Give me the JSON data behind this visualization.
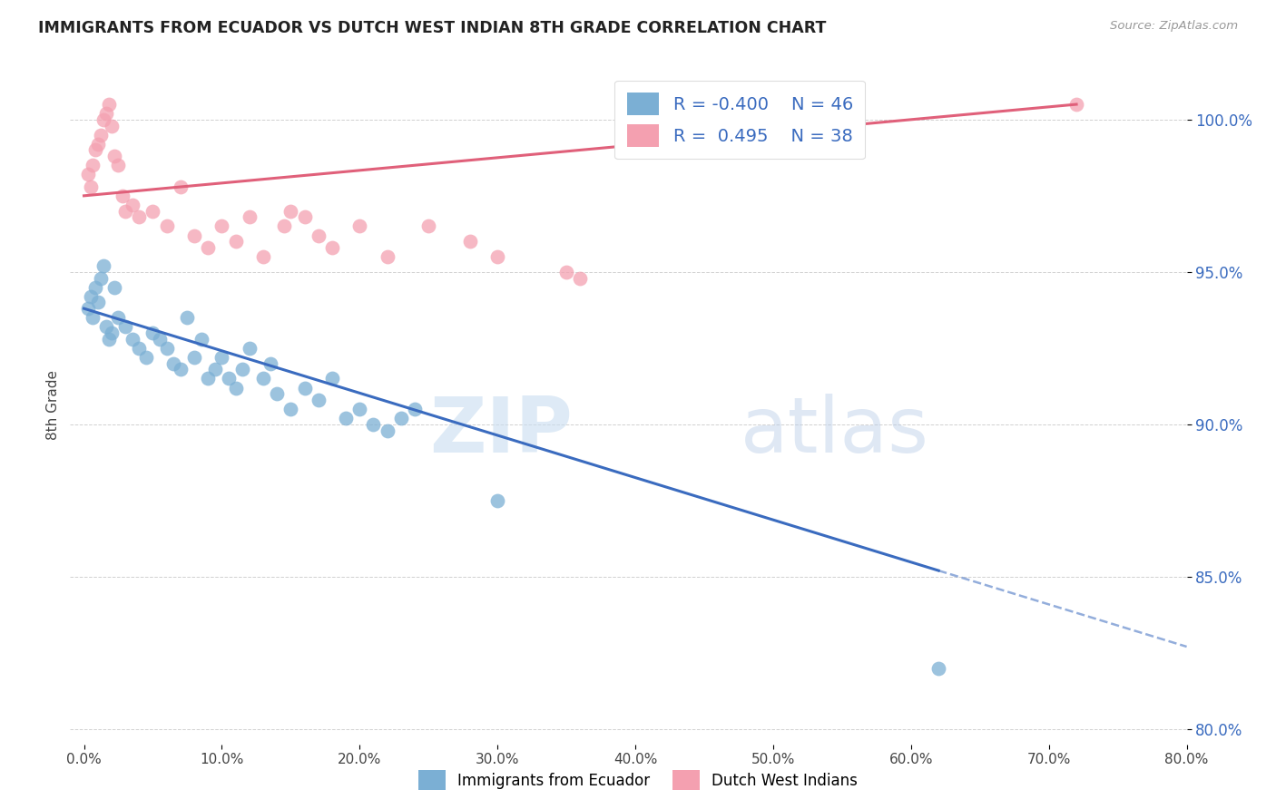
{
  "title": "IMMIGRANTS FROM ECUADOR VS DUTCH WEST INDIAN 8TH GRADE CORRELATION CHART",
  "source": "Source: ZipAtlas.com",
  "ylabel": "8th Grade",
  "yticks": [
    80.0,
    85.0,
    90.0,
    95.0,
    100.0
  ],
  "xticks": [
    0.0,
    10.0,
    20.0,
    30.0,
    40.0,
    50.0,
    60.0,
    70.0,
    80.0
  ],
  "xlim": [
    -1.0,
    80.0
  ],
  "ylim": [
    79.5,
    101.8
  ],
  "legend_blue_r": "-0.400",
  "legend_blue_n": "46",
  "legend_pink_r": "0.495",
  "legend_pink_n": "38",
  "blue_color": "#7BAFD4",
  "pink_color": "#F4A0B0",
  "blue_line_color": "#3A6BBF",
  "pink_line_color": "#E0607A",
  "blue_scatter_x": [
    0.3,
    0.5,
    0.6,
    0.8,
    1.0,
    1.2,
    1.4,
    1.6,
    1.8,
    2.0,
    2.2,
    2.5,
    3.0,
    3.5,
    4.0,
    4.5,
    5.0,
    5.5,
    6.0,
    6.5,
    7.0,
    7.5,
    8.0,
    8.5,
    9.0,
    9.5,
    10.0,
    10.5,
    11.0,
    11.5,
    12.0,
    13.0,
    13.5,
    14.0,
    15.0,
    16.0,
    17.0,
    18.0,
    19.0,
    20.0,
    21.0,
    22.0,
    23.0,
    24.0,
    30.0,
    62.0
  ],
  "blue_scatter_y": [
    93.8,
    94.2,
    93.5,
    94.5,
    94.0,
    94.8,
    95.2,
    93.2,
    92.8,
    93.0,
    94.5,
    93.5,
    93.2,
    92.8,
    92.5,
    92.2,
    93.0,
    92.8,
    92.5,
    92.0,
    91.8,
    93.5,
    92.2,
    92.8,
    91.5,
    91.8,
    92.2,
    91.5,
    91.2,
    91.8,
    92.5,
    91.5,
    92.0,
    91.0,
    90.5,
    91.2,
    90.8,
    91.5,
    90.2,
    90.5,
    90.0,
    89.8,
    90.2,
    90.5,
    87.5,
    82.0
  ],
  "pink_scatter_x": [
    0.3,
    0.5,
    0.6,
    0.8,
    1.0,
    1.2,
    1.4,
    1.6,
    1.8,
    2.0,
    2.2,
    2.5,
    2.8,
    3.0,
    3.5,
    4.0,
    5.0,
    6.0,
    7.0,
    8.0,
    9.0,
    10.0,
    11.0,
    12.0,
    13.0,
    14.5,
    15.0,
    16.0,
    17.0,
    18.0,
    20.0,
    22.0,
    25.0,
    28.0,
    30.0,
    35.0,
    36.0,
    72.0
  ],
  "pink_scatter_y": [
    98.2,
    97.8,
    98.5,
    99.0,
    99.2,
    99.5,
    100.0,
    100.2,
    100.5,
    99.8,
    98.8,
    98.5,
    97.5,
    97.0,
    97.2,
    96.8,
    97.0,
    96.5,
    97.8,
    96.2,
    95.8,
    96.5,
    96.0,
    96.8,
    95.5,
    96.5,
    97.0,
    96.8,
    96.2,
    95.8,
    96.5,
    95.5,
    96.5,
    96.0,
    95.5,
    95.0,
    94.8,
    100.5
  ],
  "blue_trendline_x": [
    0.0,
    62.0
  ],
  "blue_trendline_solid_end": 62.0,
  "blue_trendline_dashed_end": 80.0,
  "pink_trendline_x": [
    0.0,
    72.0
  ]
}
